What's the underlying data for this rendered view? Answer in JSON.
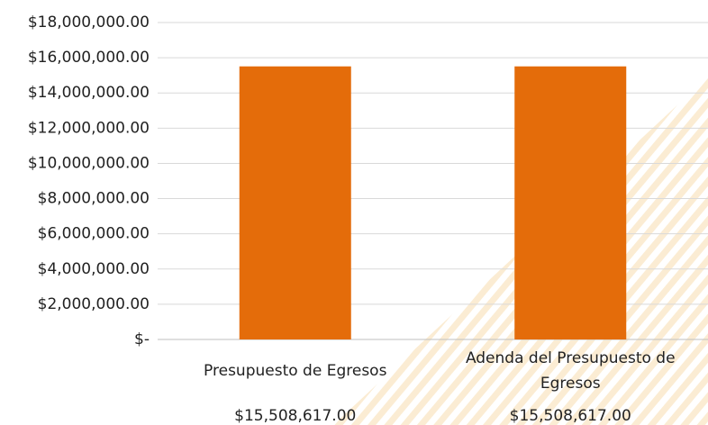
{
  "chart_data": {
    "type": "bar",
    "categories": [
      "Presupuesto de Egresos",
      "Adenda del Presupuesto de Egresos"
    ],
    "values": [
      15508617,
      15508617
    ],
    "value_labels": [
      "$15,508,617.00",
      "$15,508,617.00"
    ],
    "color": "#e46c0a",
    "ylim": [
      0,
      18000000
    ],
    "yticks": [
      {
        "value": 0,
        "label": "$-"
      },
      {
        "value": 2000000,
        "label": "$2,000,000.00"
      },
      {
        "value": 4000000,
        "label": "$4,000,000.00"
      },
      {
        "value": 6000000,
        "label": "$6,000,000.00"
      },
      {
        "value": 8000000,
        "label": "$8,000,000.00"
      },
      {
        "value": 10000000,
        "label": "$10,000,000.00"
      },
      {
        "value": 12000000,
        "label": "$12,000,000.00"
      },
      {
        "value": 14000000,
        "label": "$14,000,000.00"
      },
      {
        "value": 16000000,
        "label": "$16,000,000.00"
      },
      {
        "value": 18000000,
        "label": "$18,000,000.00"
      }
    ],
    "grid": true
  }
}
